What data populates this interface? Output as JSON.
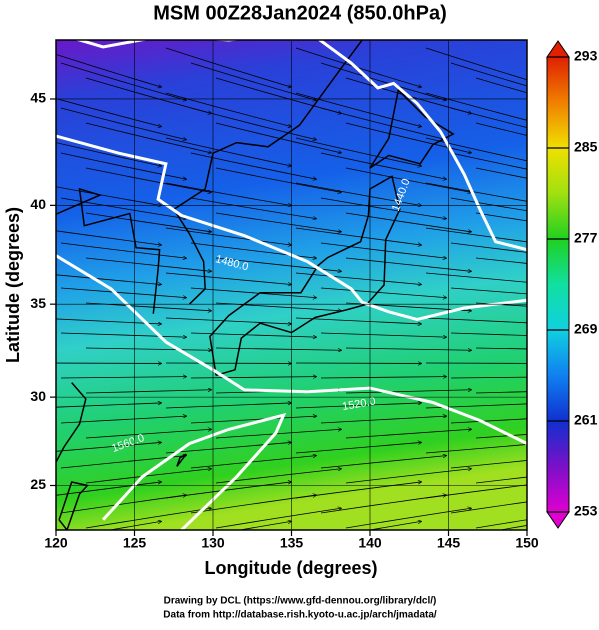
{
  "chart_data": {
    "type": "map",
    "title": "MSM 00Z28Jan2024 (850.0hPa)",
    "xlabel": "Longitude (degrees)",
    "ylabel": "Latitude  (degrees)",
    "projection": "mercator",
    "xlim": [
      120,
      150
    ],
    "ylim": [
      22.4,
      47.6
    ],
    "xticks": [
      120,
      125,
      130,
      135,
      140,
      145,
      150
    ],
    "yticks": [
      25,
      30,
      35,
      40,
      45
    ],
    "grid": true,
    "colorbar": {
      "lim": [
        253,
        293
      ],
      "ticks": [
        253,
        261,
        269,
        277,
        285,
        293
      ],
      "colors": [
        "#e000d0",
        "#7a10c8",
        "#1030d0",
        "#1080f0",
        "#10d0e0",
        "#10e0a0",
        "#20d020",
        "#a0e010",
        "#f0e000",
        "#f08000",
        "#e02000"
      ]
    },
    "contours": [
      {
        "value": 1440,
        "label": "1440.0"
      },
      {
        "value": 1480,
        "label": "1480.0"
      },
      {
        "value": 1520,
        "label": "1520.0"
      },
      {
        "value": 1560,
        "label": "1560.0"
      }
    ]
  },
  "footer": [
    "Drawing by DCL (https://www.gfd-dennou.org/library/dcl/)",
    "Data from http://database.rish.kyoto-u.ac.jp/arch/jmadata/"
  ]
}
